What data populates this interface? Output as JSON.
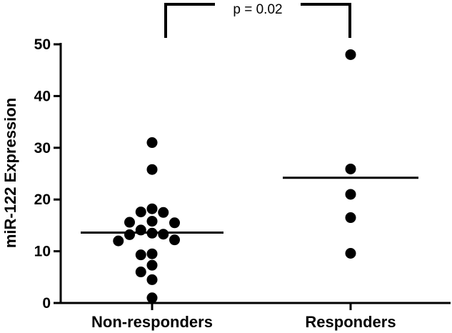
{
  "chart_data": {
    "type": "scatter",
    "title": "",
    "xlabel": "",
    "ylabel": "miR-122 Expression",
    "ylim": [
      0,
      50
    ],
    "yticks": [
      0,
      10,
      20,
      30,
      40,
      50
    ],
    "categories": [
      "Non-responders",
      "Responders"
    ],
    "grid": false,
    "legend": "none",
    "series": [
      {
        "category": "Non-responders",
        "mean": 13.6,
        "points": [
          31.0,
          25.8,
          18.2,
          17.6,
          17.5,
          15.8,
          15.6,
          15.5,
          14.1,
          13.5,
          13.3,
          13.2,
          12.2,
          12.0,
          9.5,
          9.3,
          7.3,
          6.0,
          4.5,
          1.0
        ]
      },
      {
        "category": "Responders",
        "mean": 24.2,
        "points": [
          48.0,
          25.9,
          21.0,
          16.5,
          9.6
        ]
      }
    ],
    "annotation": {
      "text": "p = 0.02",
      "between": [
        "Non-responders",
        "Responders"
      ]
    },
    "colors": {
      "marker": "#000000",
      "line": "#000000",
      "background": "#ffffff"
    }
  }
}
